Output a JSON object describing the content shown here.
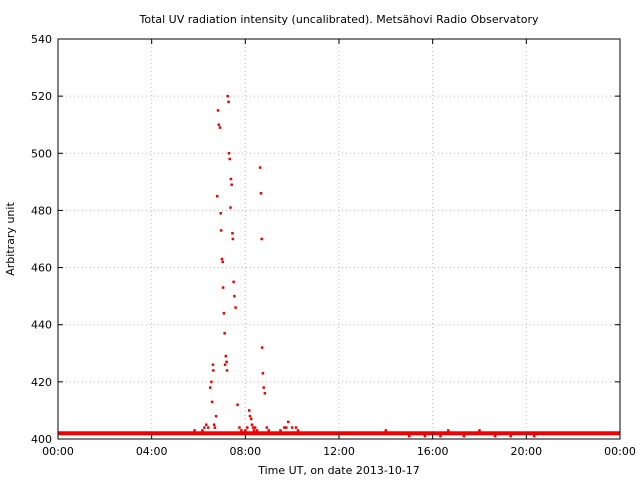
{
  "chart_data": {
    "type": "scatter",
    "title": "Total UV radiation intensity (uncalibrated). Metsähovi Radio Observatory",
    "xlabel": "Time UT, on date 2013-10-17",
    "ylabel": "Arbitrary unit",
    "xlim": [
      "00:00",
      "24:00"
    ],
    "ylim": [
      400,
      540
    ],
    "x_ticks": [
      "00:00",
      "04:00",
      "08:00",
      "12:00",
      "16:00",
      "20:00",
      "00:00"
    ],
    "y_ticks": [
      400,
      420,
      440,
      460,
      480,
      500,
      520,
      540
    ],
    "grid": true,
    "marker_color": "#ee0000",
    "baseline": {
      "value": 402,
      "from": "00:00",
      "to": "24:00"
    },
    "series": [
      {
        "x": [
          "05:50",
          "06:00",
          "06:10",
          "06:15",
          "06:20",
          "06:25",
          "06:30",
          "06:33",
          "06:35",
          "06:37",
          "06:38",
          "06:40",
          "06:42",
          "06:45",
          "06:48",
          "06:50",
          "06:52",
          "06:55",
          "06:57",
          "06:58",
          "07:00",
          "07:02",
          "07:03",
          "07:05",
          "07:07",
          "07:08",
          "07:10",
          "07:12",
          "07:13",
          "07:15",
          "07:17",
          "07:18",
          "07:20",
          "07:22",
          "07:23",
          "07:25",
          "07:27",
          "07:28",
          "07:30",
          "07:32",
          "07:35",
          "07:40",
          "07:45",
          "07:50",
          "07:55",
          "08:00",
          "08:05",
          "08:10",
          "08:12",
          "08:15",
          "08:17",
          "08:20",
          "08:22",
          "08:25",
          "08:30",
          "08:35",
          "08:38",
          "08:40",
          "08:42",
          "08:43",
          "08:45",
          "08:47",
          "08:50",
          "08:55",
          "09:00",
          "09:10",
          "09:20",
          "09:30",
          "09:40",
          "09:45",
          "09:50",
          "10:00",
          "10:10",
          "10:15",
          "10:20",
          "13:50",
          "14:00",
          "14:20",
          "14:40",
          "15:00",
          "15:20",
          "15:40",
          "16:00",
          "16:20",
          "16:40",
          "17:00",
          "17:20",
          "17:40",
          "18:00",
          "18:10",
          "18:20",
          "18:40",
          "19:00",
          "19:20",
          "19:40",
          "20:00",
          "20:20",
          "20:40",
          "21:00"
        ],
        "y": [
          403,
          402,
          403,
          404,
          405,
          404,
          418,
          420,
          413,
          426,
          424,
          405,
          404,
          408,
          485,
          515,
          510,
          509,
          479,
          473,
          463,
          462,
          453,
          444,
          437,
          426,
          429,
          427,
          424,
          520,
          518,
          500,
          498,
          481,
          491,
          489,
          472,
          470,
          455,
          450,
          446,
          412,
          404,
          403,
          402,
          403,
          404,
          410,
          408,
          407,
          405,
          404,
          403,
          404,
          403,
          402,
          495,
          486,
          470,
          432,
          423,
          418,
          416,
          404,
          403,
          402,
          402,
          403,
          404,
          404,
          406,
          404,
          404,
          403,
          402,
          402,
          403,
          402,
          402,
          401,
          402,
          401,
          402,
          401,
          403,
          402,
          401,
          402,
          403,
          402,
          402,
          401,
          402,
          401,
          402,
          402,
          401,
          402,
          402
        ]
      }
    ]
  }
}
